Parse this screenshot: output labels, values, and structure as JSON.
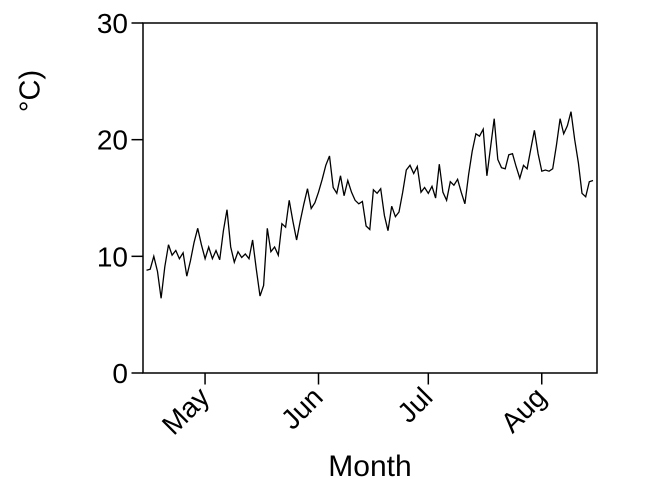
{
  "figure": {
    "background_color": "#ffffff",
    "y_axis_label": "°C)",
    "x_axis_label": "Month"
  },
  "chart_data": {
    "type": "line",
    "title": "",
    "xlabel": "Month",
    "ylabel": "°C)",
    "line_color": "#000000",
    "background_color": "#ffffff",
    "grid": false,
    "legend": false,
    "frame_box": true,
    "ylim": [
      0,
      30
    ],
    "y_ticks": [
      0,
      10,
      20,
      30
    ],
    "y_tick_labels": [
      "0",
      "10",
      "20",
      "30"
    ],
    "x_tick_labels": [
      "May",
      "Jun",
      "Jul",
      "Aug"
    ],
    "x_tick_indices": [
      16,
      47,
      77,
      108
    ],
    "x_unit": "day",
    "x_range": [
      "Apr 15",
      "Aug 15"
    ],
    "x": [
      "4/15",
      "4/16",
      "4/17",
      "4/18",
      "4/19",
      "4/20",
      "4/21",
      "4/22",
      "4/23",
      "4/24",
      "4/25",
      "4/26",
      "4/27",
      "4/28",
      "4/29",
      "4/30",
      "5/1",
      "5/2",
      "5/3",
      "5/4",
      "5/5",
      "5/6",
      "5/7",
      "5/8",
      "5/9",
      "5/10",
      "5/11",
      "5/12",
      "5/13",
      "5/14",
      "5/15",
      "5/16",
      "5/17",
      "5/18",
      "5/19",
      "5/20",
      "5/21",
      "5/22",
      "5/23",
      "5/24",
      "5/25",
      "5/26",
      "5/27",
      "5/28",
      "5/29",
      "5/30",
      "5/31",
      "6/1",
      "6/2",
      "6/3",
      "6/4",
      "6/5",
      "6/6",
      "6/7",
      "6/8",
      "6/9",
      "6/10",
      "6/11",
      "6/12",
      "6/13",
      "6/14",
      "6/15",
      "6/16",
      "6/17",
      "6/18",
      "6/19",
      "6/20",
      "6/21",
      "6/22",
      "6/23",
      "6/24",
      "6/25",
      "6/26",
      "6/27",
      "6/28",
      "6/29",
      "6/30",
      "7/1",
      "7/2",
      "7/3",
      "7/4",
      "7/5",
      "7/6",
      "7/7",
      "7/8",
      "7/9",
      "7/10",
      "7/11",
      "7/12",
      "7/13",
      "7/14",
      "7/15",
      "7/16",
      "7/17",
      "7/18",
      "7/19",
      "7/20",
      "7/21",
      "7/22",
      "7/23",
      "7/24",
      "7/25",
      "7/26",
      "7/27",
      "7/28",
      "7/29",
      "7/30",
      "7/31",
      "8/1",
      "8/2",
      "8/3",
      "8/4",
      "8/5",
      "8/6",
      "8/7",
      "8/8",
      "8/9",
      "8/10",
      "8/11",
      "8/12",
      "8/13",
      "8/14",
      "8/15"
    ],
    "values": [
      8.8,
      8.9,
      10.0,
      8.7,
      6.4,
      9.1,
      11.0,
      10.1,
      10.5,
      9.8,
      10.3,
      8.3,
      9.6,
      11.2,
      12.4,
      11.0,
      9.8,
      10.8,
      9.8,
      10.5,
      9.7,
      12.2,
      14.0,
      10.8,
      9.5,
      10.4,
      9.9,
      10.2,
      9.8,
      11.4,
      8.9,
      6.6,
      7.5,
      12.4,
      10.4,
      10.8,
      10.1,
      12.8,
      12.5,
      14.8,
      13.0,
      11.4,
      13.0,
      14.5,
      15.8,
      14.1,
      14.6,
      15.5,
      16.6,
      17.8,
      18.6,
      15.9,
      15.4,
      16.9,
      15.2,
      16.5,
      15.5,
      14.8,
      14.5,
      14.7,
      12.6,
      12.3,
      15.7,
      15.4,
      15.8,
      13.5,
      12.2,
      14.3,
      13.4,
      13.8,
      15.5,
      17.4,
      17.8,
      17.1,
      17.7,
      15.5,
      15.9,
      15.4,
      16.0,
      15.0,
      17.9,
      15.5,
      14.8,
      16.4,
      16.1,
      16.6,
      15.5,
      14.5,
      17.0,
      19.0,
      20.5,
      20.3,
      20.9,
      16.9,
      19.3,
      21.8,
      18.3,
      17.6,
      17.5,
      18.7,
      18.8,
      17.7,
      16.7,
      17.8,
      17.5,
      19.2,
      20.8,
      18.8,
      17.3,
      17.4,
      17.3,
      17.5,
      19.5,
      21.8,
      20.5,
      21.2,
      22.4,
      20.0,
      18.0,
      15.4,
      15.1,
      16.4,
      16.5
    ]
  }
}
